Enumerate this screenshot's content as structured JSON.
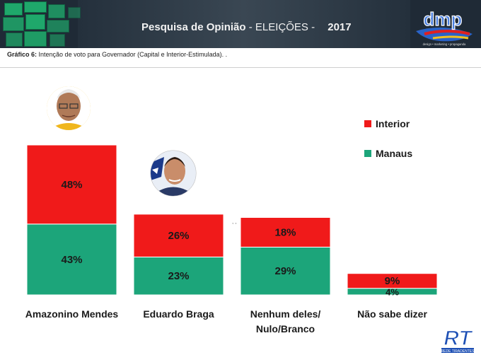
{
  "header": {
    "title": "Pesquisa de Opinião",
    "subtitle": "- ELEIÇÕES -",
    "year": "2017",
    "logo_text": "dmp",
    "logo_tagline": "design • marketing • propaganda"
  },
  "caption": {
    "label": "Gráfico 6:",
    "text": "Intenção de voto para Governador (Capital e Interior-Estimulada). ."
  },
  "watermark": {
    "text": "RT",
    "tagline": "REDE TIRADENTES"
  },
  "colors": {
    "interior": "#f01a1a",
    "manaus": "#1ca57a",
    "header_bg": "#1f2a36",
    "header_tile": "#1fa86b"
  },
  "chart_data": {
    "type": "bar",
    "stacked": true,
    "categories": [
      "Amazonino Mendes",
      "Eduardo Braga",
      "Nenhum deles/ Nulo/Branco",
      "Não sabe dizer"
    ],
    "category_lines": [
      [
        "Amazonino Mendes"
      ],
      [
        "Eduardo Braga"
      ],
      [
        "Nenhum deles/",
        "Nulo/Branco"
      ],
      [
        "Não sabe dizer"
      ]
    ],
    "series": [
      {
        "name": "Manaus",
        "values": [
          43,
          23,
          29,
          4
        ],
        "labels": [
          "43%",
          "23%",
          "29%",
          "4%"
        ],
        "color": "#1ca57a"
      },
      {
        "name": "Interior",
        "values": [
          48,
          26,
          18,
          9
        ],
        "labels": [
          "48%",
          "26%",
          "18%",
          "9%"
        ],
        "color": "#f01a1a"
      }
    ],
    "legend": [
      "Interior",
      "Manaus"
    ],
    "legend_position": "top-right",
    "ylim": [
      0,
      95
    ],
    "grid": false
  }
}
